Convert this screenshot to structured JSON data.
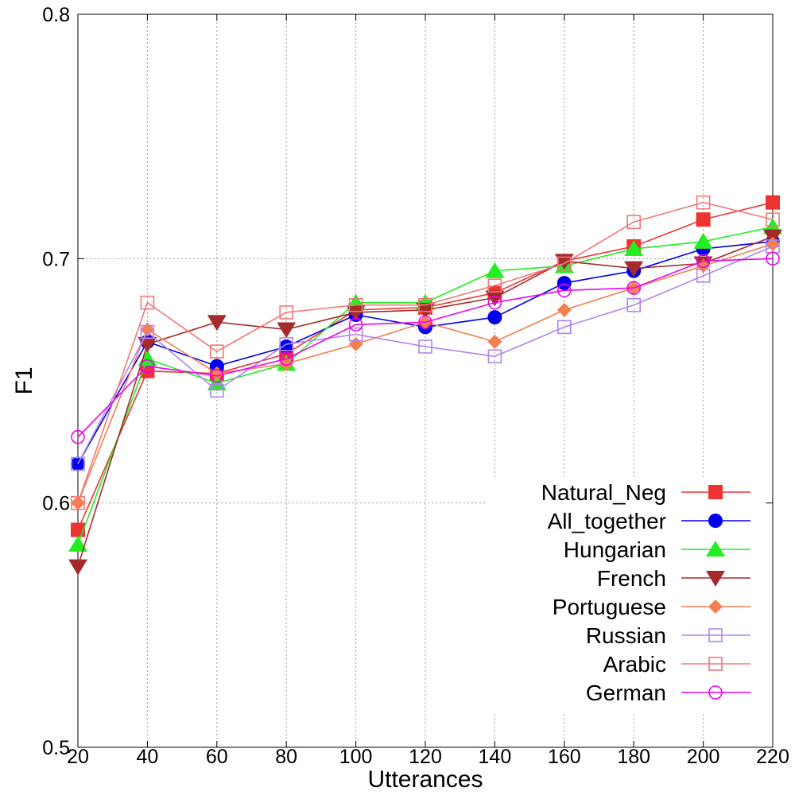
{
  "chart_data": {
    "type": "line",
    "xlabel": "Utterances",
    "ylabel": "F1",
    "xlim": [
      20,
      220
    ],
    "ylim": [
      0.5,
      0.8
    ],
    "x_ticks": [
      "20",
      "40",
      "60",
      "80",
      "100",
      "120",
      "140",
      "160",
      "180",
      "200",
      "220"
    ],
    "y_ticks": [
      "0.5",
      "0.6",
      "0.7",
      "0.8"
    ],
    "x": [
      20,
      40,
      60,
      80,
      100,
      120,
      140,
      160,
      180,
      200,
      220
    ],
    "grid": true,
    "legend_position": "bottom-right",
    "series": [
      {
        "name": "Natural_Neg",
        "color": "#ee3333",
        "marker": "square-filled",
        "values": [
          0.589,
          0.654,
          0.653,
          0.661,
          0.679,
          0.68,
          0.686,
          0.699,
          0.705,
          0.716,
          0.723
        ]
      },
      {
        "name": "All_together",
        "color": "#0000ee",
        "marker": "circle-filled",
        "values": [
          0.616,
          0.666,
          0.656,
          0.664,
          0.677,
          0.672,
          0.676,
          0.69,
          0.695,
          0.704,
          0.707
        ]
      },
      {
        "name": "Hungarian",
        "color": "#22ee22",
        "marker": "triangle-up-filled",
        "values": [
          0.583,
          0.659,
          0.649,
          0.657,
          0.682,
          0.682,
          0.695,
          0.697,
          0.704,
          0.707,
          0.713
        ]
      },
      {
        "name": "French",
        "color": "#a52a2a",
        "marker": "triangle-down-filled",
        "values": [
          0.574,
          0.665,
          0.674,
          0.671,
          0.678,
          0.679,
          0.684,
          0.699,
          0.696,
          0.698,
          0.709
        ]
      },
      {
        "name": "Portuguese",
        "color": "#f47f4f",
        "marker": "diamond-filled",
        "values": [
          0.6,
          0.671,
          0.653,
          0.657,
          0.665,
          0.674,
          0.666,
          0.679,
          0.688,
          0.697,
          0.706
        ]
      },
      {
        "name": "Russian",
        "color": "#b085f0",
        "marker": "square-open",
        "values": [
          0.616,
          0.67,
          0.646,
          0.665,
          0.669,
          0.664,
          0.66,
          0.672,
          0.681,
          0.693,
          0.705
        ]
      },
      {
        "name": "Arabic",
        "color": "#f07878",
        "marker": "square-open",
        "values": [
          0.6,
          0.682,
          0.662,
          0.678,
          0.681,
          0.681,
          0.689,
          0.698,
          0.715,
          0.723,
          0.716
        ]
      },
      {
        "name": "German",
        "color": "#ee00ee",
        "marker": "circle-open",
        "values": [
          0.627,
          0.656,
          0.652,
          0.659,
          0.673,
          0.674,
          0.682,
          0.687,
          0.688,
          0.699,
          0.7
        ]
      }
    ]
  }
}
